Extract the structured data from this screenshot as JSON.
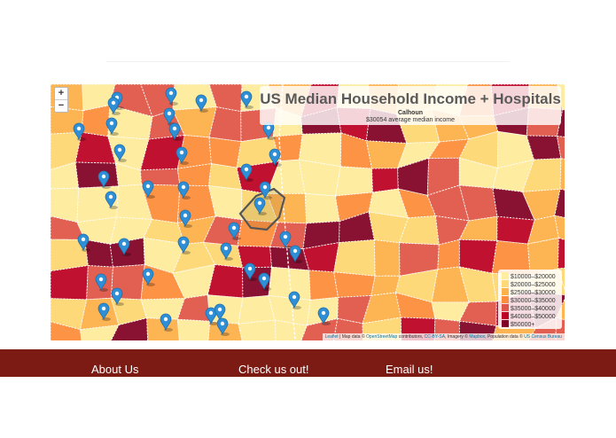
{
  "map": {
    "title": "US Median Household Income + Hospitals",
    "hover": {
      "county": "Calhoun",
      "average": "$30054 average median income"
    },
    "zoom": {
      "in": "+",
      "out": "−"
    },
    "legend": [
      {
        "label": "$10000–$20000",
        "color": "#ffeda0"
      },
      {
        "label": "$20000–$25000",
        "color": "#fed976"
      },
      {
        "label": "$25000–$30000",
        "color": "#feb24c"
      },
      {
        "label": "$30000–$35000",
        "color": "#fd8d3c"
      },
      {
        "label": "$35000–$40000",
        "color": "#e0554a"
      },
      {
        "label": "$40000–$50000",
        "color": "#bd0026"
      },
      {
        "label": "$50000+",
        "color": "#800026"
      }
    ],
    "attribution": {
      "leaflet": "Leaflet",
      "prefix": " | Map data © ",
      "osm": "OpenStreetMap",
      "contrib": " contributors, ",
      "license": "CC-BY-SA",
      "imagery": ", Imagery © ",
      "mapbox": "Mapbox",
      "pop": ", Population data © ",
      "census": "US Census Bureau"
    }
  },
  "footer": {
    "about": "About Us",
    "check": "Check us out!",
    "email": "Email us!"
  }
}
